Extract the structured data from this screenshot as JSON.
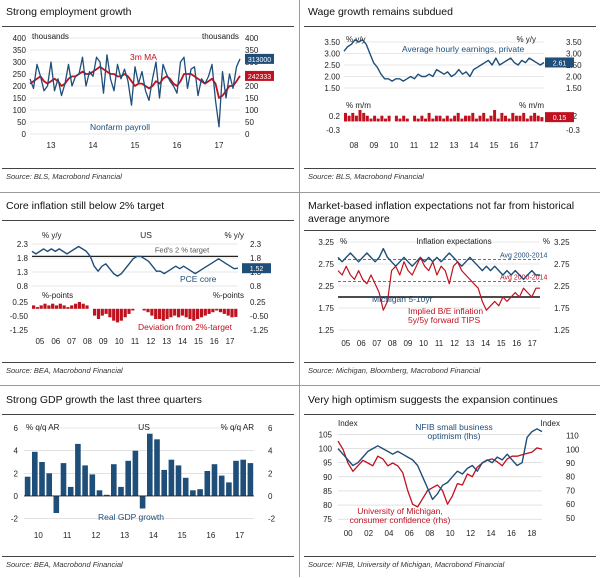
{
  "colors": {
    "blue": "#1f4e79",
    "red": "#c0111f",
    "grid": "#d0d0d0",
    "avg": "#1f4e79"
  },
  "chart_data": [
    {
      "id": "p1",
      "type": "line",
      "title": "Strong employment growth",
      "source": "Source: BLS, Macrobond Financial",
      "x_ticks": [
        "13",
        "14",
        "15",
        "16",
        "17"
      ],
      "left_axis": {
        "label": "thousands",
        "ticks": [
          "400",
          "350",
          "300",
          "250",
          "200",
          "150",
          "100",
          "50",
          "0"
        ],
        "range": [
          0,
          400
        ]
      },
      "right_axis": {
        "label": "thousands",
        "ticks": [
          "400",
          "350",
          "300",
          "250",
          "200",
          "150",
          "100",
          "50",
          "0"
        ],
        "range": [
          0,
          400
        ]
      },
      "series": [
        {
          "name": "Nonfarm payroll",
          "color": "blue",
          "end_badge": "313000",
          "values": [
            230,
            190,
            290,
            240,
            180,
            200,
            300,
            180,
            230,
            160,
            210,
            290,
            200,
            240,
            250,
            320,
            200,
            260,
            240,
            320,
            300,
            170,
            330,
            230,
            180,
            290,
            230,
            270,
            220,
            120,
            280,
            210,
            260,
            180,
            140,
            230,
            300,
            150,
            290,
            250,
            220,
            200,
            170,
            300,
            320,
            190,
            270,
            280,
            160,
            230,
            210,
            240,
            290,
            140,
            30,
            260,
            150,
            250,
            190,
            280,
            313
          ]
        },
        {
          "name": "3m MA",
          "color": "red",
          "end_badge": "242333",
          "values": [
            210,
            220,
            230,
            240,
            220,
            210,
            220,
            230,
            220,
            200,
            210,
            230,
            240,
            240,
            250,
            260,
            250,
            250,
            260,
            270,
            280,
            270,
            260,
            250,
            250,
            240,
            240,
            250,
            240,
            220,
            200,
            210,
            210,
            200,
            190,
            200,
            220,
            210,
            230,
            240,
            230,
            210,
            200,
            220,
            250,
            250,
            250,
            240,
            230,
            220,
            210,
            220,
            230,
            210,
            150,
            160,
            180,
            200,
            200,
            220,
            242
          ]
        }
      ]
    },
    {
      "id": "p2",
      "type": "line",
      "title": "Wage growth remains subdued",
      "source": "Source: BLS, Macrobond Financial",
      "x_ticks": [
        "08",
        "09",
        "10",
        "11",
        "12",
        "13",
        "14",
        "15",
        "16",
        "17"
      ],
      "upper": {
        "left_label": "% y/y",
        "right_label": "% y/y",
        "left_ticks": [
          "3.50",
          "3.00",
          "2.50",
          "2.00",
          "1.50"
        ],
        "right_ticks": [
          "3.50",
          "3.00",
          "2.50",
          "2.00",
          "1.50"
        ],
        "range": [
          1.5,
          3.5
        ],
        "series_name": "Average hourly earnings, private",
        "end_badge": "2.61",
        "values": [
          3.1,
          3.3,
          3.4,
          3.6,
          3.5,
          3.6,
          3.4,
          3.0,
          2.6,
          2.4,
          2.1,
          1.9,
          1.9,
          1.8,
          1.9,
          1.9,
          1.8,
          1.9,
          2.0,
          1.9,
          2.1,
          2.0,
          2.0,
          2.1,
          2.0,
          2.3,
          2.2,
          2.1,
          2.2,
          2.0,
          2.1,
          2.3,
          2.1,
          2.2,
          2.0,
          2.3,
          2.4,
          2.5,
          2.6,
          2.7,
          2.5,
          2.8,
          2.5,
          2.6,
          2.7,
          2.8,
          2.6,
          2.5,
          2.7,
          2.6,
          2.8,
          2.7,
          2.6,
          2.5,
          2.61
        ]
      },
      "lower": {
        "left_label": "% m/m",
        "right_label": "% m/m",
        "left_ticks": [
          "0.2",
          "-0.3"
        ],
        "right_ticks": [
          "0.2",
          "-0.3"
        ],
        "range": [
          -0.3,
          0.4
        ],
        "end_badge": "0.15",
        "values": [
          0.3,
          0.2,
          0.3,
          0.2,
          0.4,
          0.3,
          0.2,
          0.1,
          0.2,
          0.1,
          0.2,
          0.1,
          0.2,
          0.0,
          0.2,
          0.1,
          0.2,
          0.1,
          0.0,
          0.2,
          0.1,
          0.2,
          0.1,
          0.3,
          0.1,
          0.2,
          0.2,
          0.1,
          0.2,
          0.1,
          0.2,
          0.3,
          0.1,
          0.2,
          0.2,
          0.3,
          0.1,
          0.2,
          0.3,
          0.1,
          0.2,
          0.4,
          0.1,
          0.3,
          0.2,
          0.1,
          0.3,
          0.2,
          0.2,
          0.3,
          0.1,
          0.2,
          0.3,
          0.2,
          0.15
        ]
      }
    },
    {
      "id": "p3",
      "type": "line",
      "title": "Core inflation still below 2% target",
      "source": "Source: BEA, Macrobond Financial",
      "x_ticks": [
        "05",
        "06",
        "07",
        "08",
        "09",
        "10",
        "11",
        "12",
        "13",
        "14",
        "15",
        "16",
        "17"
      ],
      "upper": {
        "left_label": "% y/y",
        "right_label": "% y/y",
        "left_ticks": [
          "2.3",
          "1.8",
          "1.3",
          "0.8"
        ],
        "right_ticks": [
          "2.3",
          "1.8",
          "1.3",
          "0.8"
        ],
        "range": [
          0.8,
          2.5
        ],
        "region_label": "US",
        "target_label": "Fed's 2 % target",
        "target": 2.0,
        "series_name": "PCE core",
        "end_badge": "1.52",
        "values": [
          2.2,
          2.1,
          2.2,
          2.3,
          2.2,
          2.3,
          2.2,
          2.3,
          2.2,
          2.1,
          2.2,
          2.3,
          2.4,
          2.3,
          2.2,
          2.0,
          1.6,
          1.4,
          1.6,
          1.7,
          1.5,
          1.3,
          1.2,
          1.3,
          1.5,
          1.7,
          1.9,
          2.0,
          2.0,
          1.9,
          1.8,
          1.6,
          1.4,
          1.4,
          1.3,
          1.4,
          1.5,
          1.6,
          1.5,
          1.6,
          1.5,
          1.4,
          1.3,
          1.4,
          1.5,
          1.6,
          1.7,
          1.8,
          1.9,
          1.8,
          1.7,
          1.6,
          1.5,
          1.52
        ]
      },
      "lower": {
        "left_label": "%-points",
        "right_label": "%-points",
        "left_ticks": [
          "0.25",
          "-0.50",
          "-1.25"
        ],
        "right_ticks": [
          "0.25",
          "-0.50",
          "-1.25"
        ],
        "range": [
          -1.25,
          0.4
        ],
        "series_name": "Deviation from 2%-target",
        "values": [
          0.2,
          0.1,
          0.2,
          0.3,
          0.2,
          0.3,
          0.2,
          0.3,
          0.2,
          0.1,
          0.2,
          0.3,
          0.4,
          0.3,
          0.2,
          0.0,
          -0.4,
          -0.6,
          -0.4,
          -0.3,
          -0.5,
          -0.7,
          -0.8,
          -0.7,
          -0.5,
          -0.3,
          -0.1,
          0.0,
          0.0,
          -0.1,
          -0.2,
          -0.4,
          -0.6,
          -0.6,
          -0.7,
          -0.6,
          -0.5,
          -0.4,
          -0.5,
          -0.4,
          -0.5,
          -0.6,
          -0.7,
          -0.6,
          -0.5,
          -0.4,
          -0.3,
          -0.2,
          -0.1,
          -0.2,
          -0.3,
          -0.4,
          -0.5,
          -0.48
        ]
      }
    },
    {
      "id": "p4",
      "type": "line",
      "title": "Market-based inflation expectations not far from historical average anymore",
      "source": "Source: Michigan, Bloomberg, Macrobond Financial",
      "x_ticks": [
        "05",
        "06",
        "07",
        "08",
        "09",
        "10",
        "11",
        "12",
        "13",
        "14",
        "15",
        "16",
        "17"
      ],
      "left_axis": {
        "label": "%",
        "ticks": [
          "3.25",
          "2.75",
          "2.25",
          "1.75",
          "1.25"
        ],
        "range": [
          1.25,
          3.25
        ]
      },
      "right_axis": {
        "label": "%",
        "ticks": [
          "3.25",
          "2.75",
          "2.25",
          "1.75",
          "1.25"
        ],
        "range": [
          1.25,
          3.25
        ]
      },
      "header": "Inflation expectations",
      "avg_blue_label": "Avg 2000-2014",
      "avg_blue": 2.85,
      "avg_red_label": "Avg 2000-2014",
      "avg_red": 2.35,
      "series": [
        {
          "name": "Michigan 5-10yr",
          "color": "blue",
          "values": [
            2.9,
            2.8,
            2.9,
            3.0,
            2.9,
            2.8,
            2.9,
            3.0,
            2.9,
            2.8,
            2.9,
            3.1,
            2.9,
            2.8,
            2.7,
            2.8,
            2.9,
            2.8,
            2.7,
            2.8,
            2.9,
            2.8,
            2.9,
            2.8,
            2.9,
            2.8,
            2.9,
            3.0,
            2.9,
            2.8,
            2.7,
            2.8,
            2.9,
            2.8,
            2.7,
            2.6,
            2.7,
            2.6,
            2.7,
            2.6,
            2.5,
            2.6,
            2.5,
            2.6,
            2.5,
            2.4,
            2.5,
            2.6,
            2.5,
            2.5
          ]
        },
        {
          "name": "Implied B/E inflation 5y/5y forward TIPS",
          "color": "red",
          "values": [
            2.6,
            2.5,
            2.7,
            2.5,
            2.4,
            2.6,
            2.4,
            2.3,
            2.5,
            2.3,
            2.1,
            1.7,
            1.9,
            2.6,
            2.7,
            2.5,
            2.8,
            2.6,
            2.5,
            2.7,
            2.9,
            2.7,
            2.6,
            2.8,
            2.5,
            2.7,
            2.6,
            2.3,
            2.7,
            2.8,
            2.6,
            2.5,
            2.4,
            2.3,
            2.2,
            1.9,
            1.7,
            1.8,
            1.9,
            1.8,
            2.0,
            1.9,
            2.0,
            2.1,
            2.0,
            2.2,
            2.1,
            2.0,
            2.2,
            2.2
          ]
        }
      ]
    },
    {
      "id": "p5",
      "type": "bar",
      "title": "Strong GDP growth the last three quarters",
      "source": "Source: BEA, Macrobond Financial",
      "x_ticks": [
        "10",
        "11",
        "12",
        "13",
        "14",
        "15",
        "16",
        "17"
      ],
      "left_axis": {
        "label": "% q/q AR",
        "ticks": [
          "6",
          "4",
          "2",
          "0",
          "-2"
        ],
        "range": [
          -2.3,
          6
        ]
      },
      "right_axis": {
        "label": "% q/q AR",
        "ticks": [
          "6",
          "4",
          "2",
          "0",
          "-2"
        ],
        "range": [
          -2.3,
          6
        ]
      },
      "region_label": "US",
      "series_name": "Real GDP growth",
      "values": [
        1.7,
        3.9,
        3.0,
        2.0,
        -1.5,
        2.9,
        0.8,
        4.6,
        2.7,
        1.9,
        0.5,
        0.1,
        2.8,
        0.8,
        3.1,
        4.0,
        -1.1,
        5.5,
        5.0,
        2.3,
        3.2,
        2.7,
        1.6,
        0.5,
        0.6,
        2.2,
        2.8,
        1.8,
        1.2,
        3.1,
        3.2,
        2.9
      ]
    },
    {
      "id": "p6",
      "type": "line",
      "title": "Very high optimism suggests the expansion continues",
      "source": "Source: NFIB, University of Michigan, Macrobond Financial",
      "x_ticks": [
        "00",
        "02",
        "04",
        "06",
        "08",
        "10",
        "12",
        "14",
        "16",
        "18"
      ],
      "left_axis": {
        "label": "Index",
        "ticks": [
          "105",
          "100",
          "95",
          "90",
          "85",
          "80",
          "75"
        ],
        "range": [
          74,
          108
        ]
      },
      "right_axis": {
        "label": "Index",
        "ticks": [
          "110",
          "100",
          "90",
          "80",
          "70",
          "60",
          "50"
        ],
        "range": [
          47,
          117
        ]
      },
      "series": [
        {
          "name": "NFIB small business optimism (lhs)",
          "color": "blue",
          "axis": "left",
          "values": [
            100,
            98,
            96,
            94,
            95,
            97,
            99,
            100,
            101,
            100,
            99,
            98,
            99,
            98,
            97,
            96,
            94,
            90,
            86,
            82,
            84,
            87,
            88,
            90,
            92,
            91,
            93,
            94,
            92,
            95,
            96,
            95,
            97,
            96,
            98,
            96,
            94,
            95,
            104,
            106,
            107,
            106
          ]
        },
        {
          "name": "University of Michigan, consumer confidence (rhs)",
          "color": "red",
          "axis": "right",
          "values": [
            106,
            100,
            90,
            84,
            88,
            92,
            90,
            88,
            95,
            93,
            88,
            90,
            88,
            83,
            70,
            60,
            58,
            64,
            70,
            72,
            74,
            70,
            60,
            66,
            75,
            74,
            82,
            80,
            87,
            90,
            92,
            93,
            91,
            88,
            93,
            95,
            95,
            96,
            97,
            98,
            101,
            100
          ]
        }
      ]
    }
  ]
}
